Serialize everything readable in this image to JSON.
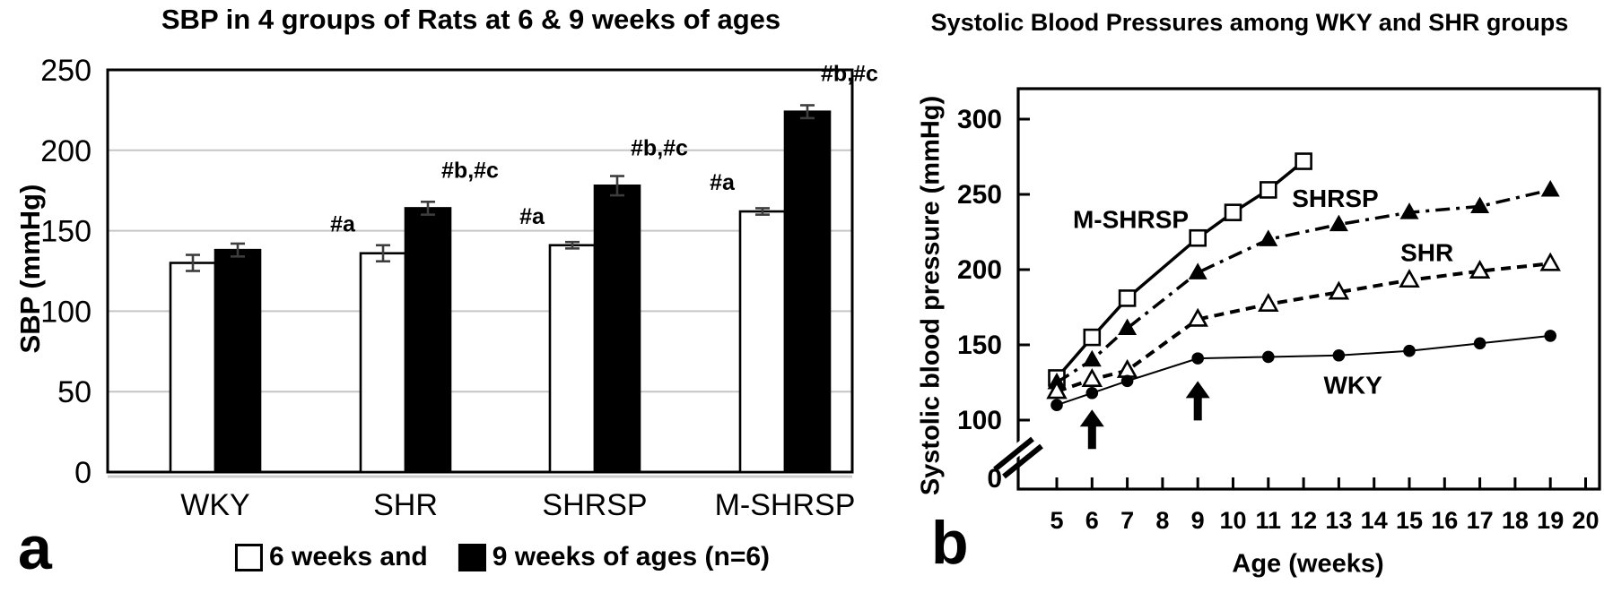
{
  "figure": {
    "panels": [
      {
        "letter": "a",
        "title": "SBP in 4 groups of Rats at 6 & 9 weeks of ages",
        "ylabel": "SBP (mmHg)"
      },
      {
        "letter": "b",
        "title": "Systolic Blood Pressures among WKY and SHR groups",
        "ylabel": "Systolic blood pressure (mmHg)",
        "xlabel": "Age (weeks)"
      }
    ]
  },
  "chart_data": [
    {
      "type": "bar",
      "title": "SBP in 4 groups of Rats at 6 & 9 weeks of ages",
      "xlabel": "",
      "ylabel": "SBP (mmHg)",
      "categories": [
        "WKY",
        "SHR",
        "SHRSP",
        "M-SHRSP"
      ],
      "yticks": [
        0,
        50,
        100,
        150,
        200,
        250
      ],
      "ylim": [
        0,
        250
      ],
      "grid": true,
      "series": [
        {
          "name": "6 weeks",
          "fill": "white",
          "values": [
            130,
            136,
            141,
            162
          ],
          "errors": [
            5,
            5,
            2,
            2
          ]
        },
        {
          "name": "9 weeks",
          "fill": "black",
          "values": [
            138,
            164,
            178,
            224
          ],
          "errors": [
            4,
            4,
            6,
            4
          ]
        }
      ],
      "annotations": [
        {
          "text": "#a",
          "group": "SHR",
          "series": "6 weeks"
        },
        {
          "text": "#a",
          "group": "SHRSP",
          "series": "6 weeks"
        },
        {
          "text": "#a",
          "group": "M-SHRSP",
          "series": "6 weeks"
        },
        {
          "text": "#b,#c",
          "group": "SHR",
          "series": "9 weeks"
        },
        {
          "text": "#b,#c",
          "group": "SHRSP",
          "series": "9 weeks"
        },
        {
          "text": "#b,#c",
          "group": "M-SHRSP",
          "series": "9 weeks"
        }
      ],
      "legend": [
        {
          "marker": "open-square",
          "label": "6 weeks and"
        },
        {
          "marker": "filled-square",
          "label": "9 weeks of ages (n=6)"
        }
      ]
    },
    {
      "type": "line",
      "title": "Systolic Blood Pressures among WKY and SHR groups",
      "xlabel": "Age (weeks)",
      "ylabel": "Systolic blood pressure (mmHg)",
      "xticks": [
        5,
        6,
        7,
        8,
        9,
        10,
        11,
        12,
        13,
        14,
        15,
        16,
        17,
        18,
        19,
        20
      ],
      "yticks": [
        0,
        100,
        150,
        200,
        250,
        300
      ],
      "ylim": [
        0,
        320
      ],
      "grid": false,
      "axis_break": {
        "axis": "y",
        "between": [
          0,
          100
        ]
      },
      "series": [
        {
          "name": "M-SHRSP",
          "marker": "open-square",
          "line": "solid-thick",
          "x": [
            5,
            6,
            7,
            9,
            10,
            11,
            12
          ],
          "y": [
            128,
            155,
            181,
            221,
            238,
            253,
            272
          ],
          "label_pos": {
            "x": 7.1,
            "y": 233
          }
        },
        {
          "name": "SHRSP",
          "marker": "filled-triangle",
          "line": "dash-dot",
          "x": [
            5,
            6,
            7,
            9,
            11,
            13,
            15,
            17,
            19
          ],
          "y": [
            125,
            140,
            161,
            198,
            220,
            230,
            238,
            242,
            253
          ],
          "label_pos": {
            "x": 12.9,
            "y": 247
          }
        },
        {
          "name": "SHR",
          "marker": "open-triangle",
          "line": "dashed",
          "x": [
            5,
            6,
            7,
            9,
            11,
            13,
            15,
            17,
            19
          ],
          "y": [
            119,
            127,
            133,
            167,
            177,
            185,
            193,
            199,
            204
          ],
          "label_pos": {
            "x": 15.5,
            "y": 211
          }
        },
        {
          "name": "WKY",
          "marker": "filled-circle",
          "line": "solid-thin",
          "x": [
            5,
            6,
            7,
            9,
            11,
            13,
            15,
            17,
            19
          ],
          "y": [
            110,
            118,
            126,
            141,
            142,
            143,
            146,
            151,
            156
          ],
          "label_pos": {
            "x": 13.4,
            "y": 123
          }
        }
      ],
      "arrows": [
        {
          "week": 6,
          "tip_mmHg": 107
        },
        {
          "week": 9,
          "tip_mmHg": 126
        }
      ]
    }
  ]
}
